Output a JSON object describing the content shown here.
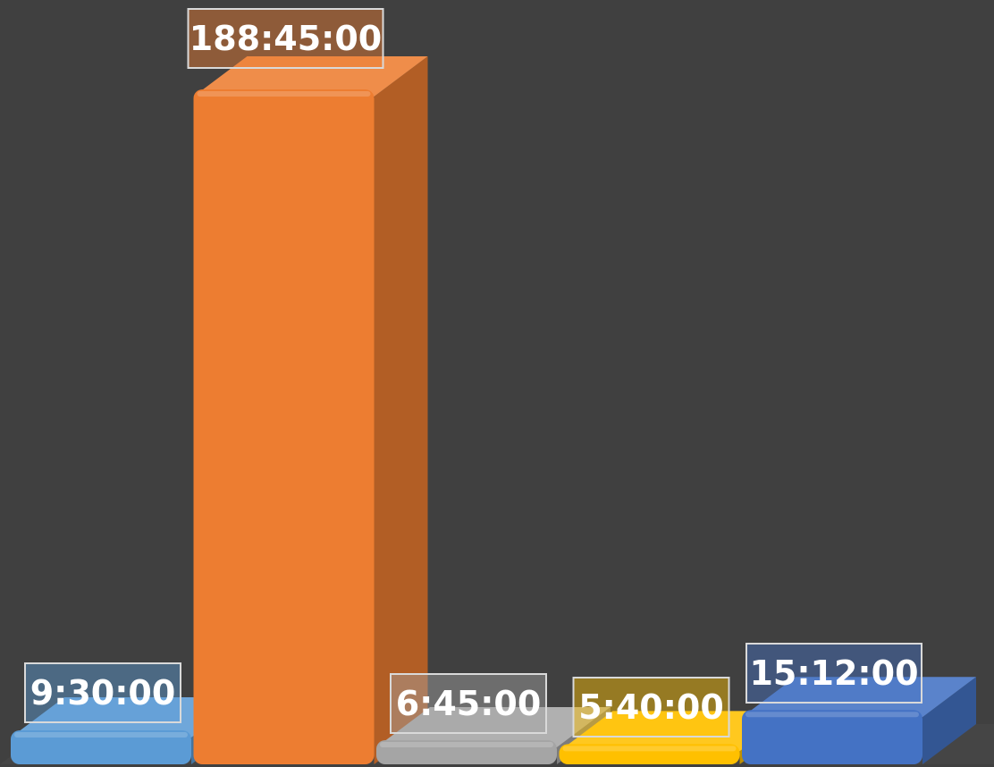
{
  "chart_data": {
    "type": "bar",
    "style": "3d-beveled",
    "categories": [
      "",
      "",
      "",
      "",
      ""
    ],
    "series": [
      {
        "values_hours": [
          9.5,
          188.75,
          6.75,
          5.6667,
          15.2
        ]
      }
    ],
    "data_labels": [
      "9:30:00",
      "188:45:00",
      "6:45:00",
      "5:40:00",
      "15:12:00"
    ],
    "colors": [
      "#5B9BD5",
      "#ED7D31",
      "#A5A5A5",
      "#FFC000",
      "#4472C4"
    ],
    "background": "#404040",
    "title": "",
    "xlabel": "",
    "ylabel": "",
    "ylim": [
      0,
      196
    ],
    "grid": false,
    "legend": "none"
  }
}
